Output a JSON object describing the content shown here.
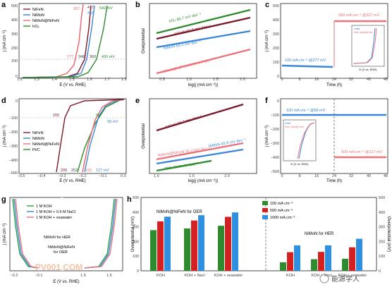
{
  "panels": {
    "a": {
      "letter": "a",
      "xlabel": "E (V vs. RHE)",
      "ylabel": "j (mA cm⁻²)",
      "xticks": [
        "1.2",
        "1.3",
        "1.4",
        "1.5",
        "1.6",
        "1.7",
        "1.8"
      ],
      "yticks": [
        "500",
        "400",
        "300",
        "200",
        "100",
        "0"
      ],
      "legend": [
        "NiFeN",
        "NiMoN",
        "NiMoN@NiFeN",
        "IrO₂"
      ],
      "labels": {
        "l1": "417",
        "l2": "456",
        "l3": "307",
        "l4": "542 mV",
        "l5": "277",
        "l6": "348",
        "l7": "360",
        "l8": "430 mV"
      }
    },
    "b": {
      "letter": "b",
      "xlabel": "log(j (mA cm⁻²))",
      "ylabel": "Overpotential",
      "xticks": [
        "0.5",
        "1.0",
        "1.5",
        "2.0"
      ],
      "labels": {
        "s1": "IrO₂ 86.7 mV dec⁻¹",
        "s2": "NiFeN 69.9 mV dec⁻¹",
        "s3": "NiMoN 60.3 mV dec⁻¹",
        "s4": "NiMoN@NiFeN 58.6 mV dec⁻¹"
      }
    },
    "c": {
      "letter": "c",
      "xlabel": "Time (h)",
      "ylabel": "j (mA cm⁻²)",
      "xticks": [
        "0",
        "8",
        "16",
        "24",
        "32",
        "40",
        "48"
      ],
      "yticks": [
        "500",
        "400",
        "300",
        "200",
        "100",
        "0"
      ],
      "labels": {
        "hi": "500 mA cm⁻² @337 mV",
        "lo": "100 mA cm⁻² @277 mV",
        "ins_x": "E (V vs. RHE)",
        "ins_l1": "Initial",
        "ins_l2": "After stability test"
      }
    },
    "d": {
      "letter": "d",
      "xlabel": "E (V vs. RHE)",
      "ylabel": "j (mA cm⁻²)",
      "xticks": [
        "−0.5",
        "−0.4",
        "−0.3",
        "−0.2",
        "−0.1",
        "0.0"
      ],
      "yticks": [
        "0",
        "−100",
        "−200",
        "−300",
        "−400",
        "−500"
      ],
      "legend": [
        "NiFeN",
        "NiMoN",
        "NiMoN@NiFeN",
        "Pt/C"
      ],
      "labels": {
        "l1": "205",
        "l2": "96",
        "l3": "58 mV",
        "l4": "299",
        "l5": "252",
        "l6": "160",
        "l7": "127 mV"
      }
    },
    "e": {
      "letter": "e",
      "xlabel": "log(j (mA cm⁻²))",
      "ylabel": "Overpotential",
      "xticks": [
        "1.0",
        "1.5",
        "2.0"
      ],
      "labels": {
        "s1": "NiFeN 96.7 mV dec⁻¹",
        "s2": "NiMoN 45.6 mV dec⁻¹",
        "s3": "NiMoN@NiFeN 30.2 mV dec⁻¹",
        "s4": "Pt/C 31.8 mV dec⁻¹"
      }
    },
    "f": {
      "letter": "f",
      "xlabel": "Time (h)",
      "ylabel": "j (mA cm⁻²)",
      "xticks": [
        "0",
        "8",
        "16",
        "24",
        "32",
        "40",
        "48"
      ],
      "yticks": [
        "0",
        "−100",
        "−200",
        "−300",
        "−400",
        "−500"
      ],
      "labels": {
        "hi": "100 mA cm⁻² @58 mV",
        "lo": "500 mA cm⁻² @127 mV",
        "ins_x": "E (V vs. RHE)",
        "ins_l1": "Initial",
        "ins_l2": "After stability test"
      }
    },
    "g": {
      "letter": "g",
      "xlabel": "E (V vs. RHE)",
      "ylabel": "j (mA cm⁻²)",
      "xticks": [
        "−0.2",
        "−0.1",
        "1.5",
        "1.6"
      ],
      "legend": [
        "1 M KOH",
        "1 M KOH + 0.5 M NaCl",
        "1 M KOH + seawater"
      ],
      "labels": {
        "her": "NiMoN for HER",
        "oer1": "NiMoN@NiFeN",
        "oer2": "for OER"
      }
    },
    "h": {
      "letter": "h",
      "ylabel_left": "Overpotential (mV)",
      "ylabel_right": "Overpotential (mV)",
      "legend": [
        "100 mA cm⁻²",
        "500 mA cm⁻²",
        "1000 mA cm⁻²"
      ],
      "group_left": "NiMoN@NiFeN for OER",
      "group_right": "NiMoN for HER"
    }
  },
  "watermark": {
    "left": "PV001.COM",
    "right": "能源学人"
  },
  "colors": {
    "NiFeN": "#7b1a2a",
    "NiMoN": "#3b86d6",
    "NiMoN@NiFeN": "#e8737a",
    "IrO2": "#2e8b2e",
    "PtC": "#2e8b2e",
    "KOH": "#2e9e4a",
    "NaCl": "#3b86d6",
    "seawater": "#e8737a",
    "bar100": "#2e8b2e",
    "bar500": "#d42020",
    "bar1000": "#2f8fe0"
  },
  "chart_data": {
    "type": "bar",
    "title": "",
    "categories_oer": [
      "KOH",
      "KOH + Nacl",
      "KOH + seawater"
    ],
    "categories_her": [
      "KOH",
      "KOH + Nacl",
      "KOH + seawater"
    ],
    "ylim_left": [
      0,
      500
    ],
    "ylim_right": [
      0,
      500
    ],
    "series": [
      {
        "name": "100 mA cm⁻²",
        "oer": [
          277,
          289,
          307
        ],
        "her": [
          58,
          79,
          82
        ]
      },
      {
        "name": "500 mA cm⁻²",
        "oer": [
          337,
          343,
          368
        ],
        "her": [
          127,
          129,
          160
        ]
      },
      {
        "name": "1000 mA cm⁻²",
        "oer": [
          369,
          379,
          398
        ],
        "her": [
          173,
          173,
          218
        ]
      }
    ]
  }
}
